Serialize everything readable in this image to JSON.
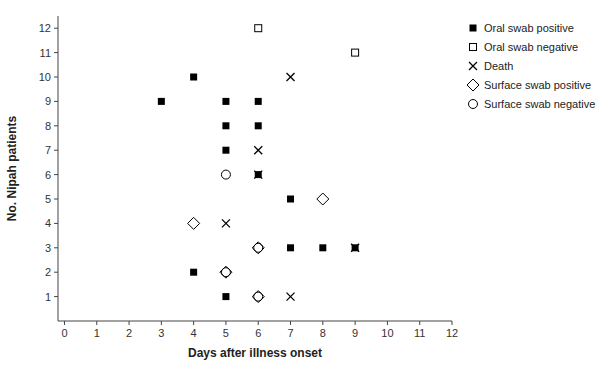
{
  "chart_data": {
    "type": "scatter",
    "xlabel": "Days after illness onset",
    "ylabel": "No. Nipah patients",
    "xlim": [
      -0.2,
      12
    ],
    "ylim": [
      0,
      12.5
    ],
    "xticks": [
      0,
      1,
      2,
      3,
      4,
      5,
      6,
      7,
      8,
      9,
      10,
      11,
      12
    ],
    "yticks": [
      1,
      2,
      3,
      4,
      5,
      6,
      7,
      8,
      9,
      10,
      11,
      12
    ],
    "grid": false,
    "legend": "upper right",
    "series": [
      {
        "name": "Oral swab positive",
        "marker": "filled-square",
        "color": "black",
        "x": [
          3,
          4,
          4,
          5,
          5,
          5,
          5,
          6,
          6,
          6,
          7,
          7,
          8,
          9
        ],
        "values": [
          9,
          10,
          2,
          9,
          8,
          7,
          1,
          9,
          8,
          6,
          5,
          3,
          3,
          3
        ]
      },
      {
        "name": "Oral swab negative",
        "marker": "open-square",
        "color": "black",
        "x": [
          6,
          9
        ],
        "values": [
          12,
          11
        ]
      },
      {
        "name": "Death",
        "marker": "x",
        "color": "black",
        "x": [
          5,
          6,
          6,
          7,
          7,
          9
        ],
        "values": [
          4,
          7,
          6,
          10,
          1,
          3
        ]
      },
      {
        "name": "Surface swab positive",
        "marker": "open-diamond",
        "color": "black",
        "x": [
          4,
          5,
          6,
          6,
          8
        ],
        "values": [
          4,
          2,
          3,
          1,
          5
        ]
      },
      {
        "name": "Surface swab negative",
        "marker": "open-circle",
        "color": "black",
        "x": [
          5,
          5,
          6,
          6
        ],
        "values": [
          6,
          2,
          3,
          1
        ]
      }
    ]
  }
}
